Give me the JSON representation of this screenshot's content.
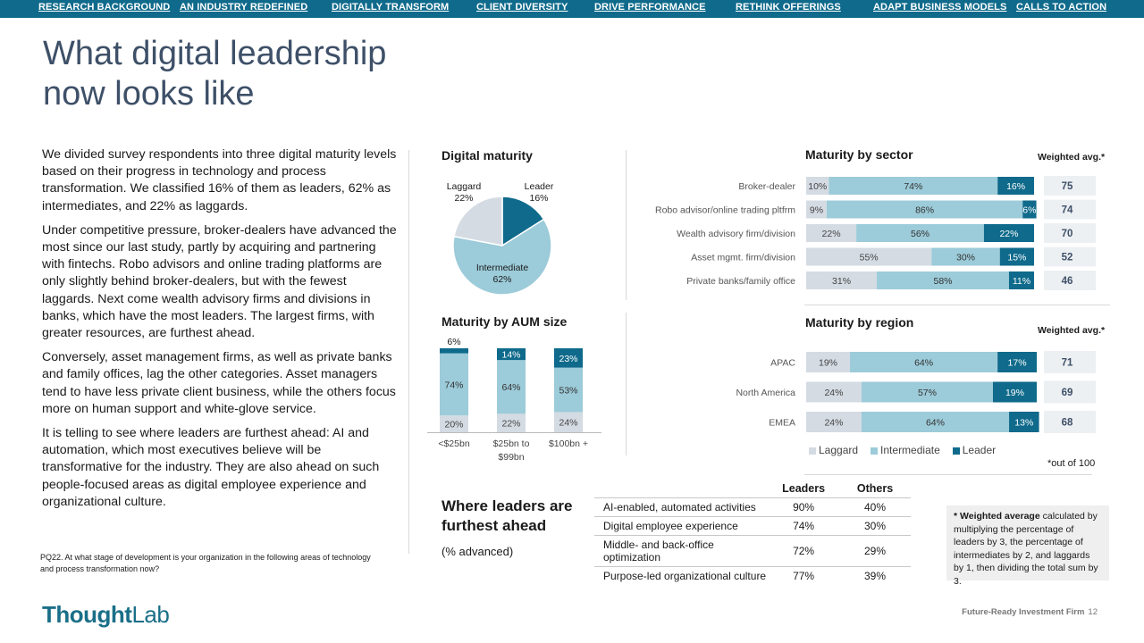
{
  "nav": [
    {
      "label": "RESEARCH BACKGROUND"
    },
    {
      "label": "AN INDUSTRY REDEFINED"
    },
    {
      "label": "DIGITALLY TRANSFORM"
    },
    {
      "label": "CLIENT DIVERSITY"
    },
    {
      "label": "DRIVE PERFORMANCE"
    },
    {
      "label": "RETHINK OFFERINGS"
    },
    {
      "label": "ADAPT BUSINESS MODELS"
    },
    {
      "label": "CALLS TO ACTION"
    }
  ],
  "title": "What digital leadership now looks like",
  "paragraphs": [
    "We divided survey respondents into three digital maturity levels based on their progress in technology and process transformation. We classified 16% of them as leaders, 62% as intermediates, and 22% as laggards.",
    "Under competitive pressure, broker-dealers have advanced the most since our last study, partly by acquiring and partnering with fintechs. Robo advisors and online trading platforms are only slightly behind broker-dealers, but with the fewest laggards. Next come wealth advisory firms and divisions in banks, which have the most leaders. The largest firms, with greater resources, are furthest ahead.",
    "Conversely, asset management firms, as well as private banks and family offices, lag the other categories. Asset managers tend to have less private client business, while the others focus more on human support and white-glove service.",
    "It is telling to see where leaders are furthest ahead: AI and automation, which most executives believe will be transformative for the industry. They are also ahead on such people-focused areas as digital employee experience and organizational culture."
  ],
  "question_note": "PQ22. At what stage of development is your organization in the following areas of technology and process transformation now?",
  "logo": {
    "bold": "Thought",
    "light": "Lab"
  },
  "colors": {
    "laggard": "#d4dbe3",
    "intermediate": "#9ccbd9",
    "leader": "#0f6a8b",
    "title": "#3e5068"
  },
  "digital_maturity": {
    "title": "Digital maturity",
    "slices": [
      {
        "label": "Leader",
        "value": 16,
        "text": "16%"
      },
      {
        "label": "Intermediate",
        "value": 62,
        "text": "62%"
      },
      {
        "label": "Laggard",
        "value": 22,
        "text": "22%"
      }
    ]
  },
  "sector": {
    "title": "Maturity by sector",
    "weighted_label": "Weighted avg.*",
    "rows": [
      {
        "name": "Broker-dealer",
        "laggard": 10,
        "intermediate": 74,
        "leader": 16,
        "avg": "75"
      },
      {
        "name": "Robo advisor/online trading pltfrm",
        "laggard": 9,
        "intermediate": 86,
        "leader": 6,
        "avg": "74"
      },
      {
        "name": "Wealth advisory firm/division",
        "laggard": 22,
        "intermediate": 56,
        "leader": 22,
        "avg": "70"
      },
      {
        "name": "Asset mgmt. firm/division",
        "laggard": 55,
        "intermediate": 30,
        "leader": 15,
        "avg": "52"
      },
      {
        "name": "Private banks/family office",
        "laggard": 31,
        "intermediate": 58,
        "leader": 11,
        "avg": "46"
      }
    ]
  },
  "aum": {
    "title": "Maturity by AUM size",
    "columns": [
      {
        "name": "<$25bn",
        "laggard": 20,
        "intermediate": 74,
        "leader": 6
      },
      {
        "name": "$25bn to $99bn",
        "laggard": 22,
        "intermediate": 64,
        "leader": 14
      },
      {
        "name": "$100bn +",
        "laggard": 24,
        "intermediate": 53,
        "leader": 23
      }
    ]
  },
  "region": {
    "title": "Maturity by region",
    "weighted_label": "Weighted avg.*",
    "rows": [
      {
        "name": "APAC",
        "laggard": 19,
        "intermediate": 64,
        "leader": 17,
        "avg": "71"
      },
      {
        "name": "North America",
        "laggard": 24,
        "intermediate": 57,
        "leader": 19,
        "avg": "69"
      },
      {
        "name": "EMEA",
        "laggard": 24,
        "intermediate": 64,
        "leader": 13,
        "avg": "68"
      }
    ]
  },
  "legend": [
    "Laggard",
    "Intermediate",
    "Leader"
  ],
  "out_of": "*out of 100",
  "leaders_table": {
    "title": "Where leaders are furthest ahead",
    "subtitle": "(% advanced)",
    "headers": [
      "Leaders",
      "Others"
    ],
    "rows": [
      {
        "area": "AI-enabled, automated activities",
        "leaders": "90%",
        "others": "40%"
      },
      {
        "area": "Digital employee experience",
        "leaders": "74%",
        "others": "30%"
      },
      {
        "area": "Middle- and back-office optimization",
        "leaders": "72%",
        "others": "29%"
      },
      {
        "area": "Purpose-led organizational culture",
        "leaders": "77%",
        "others": "39%"
      }
    ]
  },
  "note": {
    "bold": "* Weighted average",
    "text": " calculated by multiplying the percentage of leaders by 3, the percentage of intermediates by 2, and laggards by 1, then dividing the total sum by 3."
  },
  "footer": {
    "publication": "Future-Ready Investment Firm",
    "page": "12"
  },
  "chart_data": [
    {
      "type": "pie",
      "title": "Digital maturity",
      "categories": [
        "Leader",
        "Intermediate",
        "Laggard"
      ],
      "values": [
        16,
        62,
        22
      ]
    },
    {
      "type": "bar",
      "title": "Maturity by sector",
      "stacked": true,
      "orientation": "horizontal",
      "categories": [
        "Broker-dealer",
        "Robo advisor/online trading pltfrm",
        "Wealth advisory firm/division",
        "Asset mgmt. firm/division",
        "Private banks/family office"
      ],
      "series": [
        {
          "name": "Laggard",
          "values": [
            10,
            9,
            22,
            55,
            31
          ]
        },
        {
          "name": "Intermediate",
          "values": [
            74,
            86,
            56,
            30,
            58
          ]
        },
        {
          "name": "Leader",
          "values": [
            16,
            6,
            22,
            15,
            11
          ]
        }
      ]
    },
    {
      "type": "bar",
      "title": "Maturity by AUM size",
      "stacked": true,
      "orientation": "vertical",
      "categories": [
        "<$25bn",
        "$25bn to $99bn",
        "$100bn +"
      ],
      "series": [
        {
          "name": "Laggard",
          "values": [
            20,
            22,
            24
          ]
        },
        {
          "name": "Intermediate",
          "values": [
            74,
            64,
            53
          ]
        },
        {
          "name": "Leader",
          "values": [
            6,
            14,
            23
          ]
        }
      ]
    },
    {
      "type": "bar",
      "title": "Maturity by region",
      "stacked": true,
      "orientation": "horizontal",
      "categories": [
        "APAC",
        "North America",
        "EMEA"
      ],
      "series": [
        {
          "name": "Laggard",
          "values": [
            19,
            24,
            24
          ]
        },
        {
          "name": "Intermediate",
          "values": [
            64,
            57,
            64
          ]
        },
        {
          "name": "Leader",
          "values": [
            17,
            19,
            13
          ]
        }
      ]
    }
  ]
}
